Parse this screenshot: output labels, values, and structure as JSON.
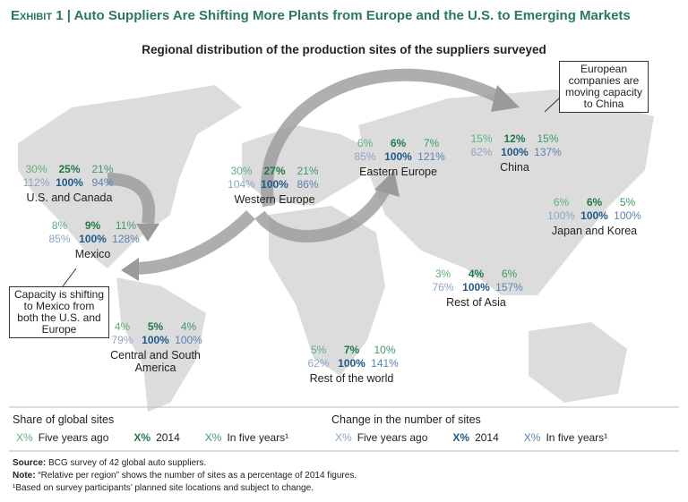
{
  "header": {
    "exhibit": "Exhibit 1",
    "title": "Auto Suppliers Are Shifting More Plants from Europe and the U.S. to Emerging Markets",
    "subtitle": "Regional distribution of the production sites of the suppliers surveyed"
  },
  "regions": [
    {
      "name": "U.S. and Canada",
      "share": [
        "30%",
        "25%",
        "21%"
      ],
      "change": [
        "112%",
        "100%",
        "94%"
      ]
    },
    {
      "name": "Western Europe",
      "share": [
        "30%",
        "27%",
        "21%"
      ],
      "change": [
        "104%",
        "100%",
        "86%"
      ]
    },
    {
      "name": "Eastern Europe",
      "share": [
        "6%",
        "6%",
        "7%"
      ],
      "change": [
        "85%",
        "100%",
        "121%"
      ]
    },
    {
      "name": "China",
      "share": [
        "15%",
        "12%",
        "15%"
      ],
      "change": [
        "62%",
        "100%",
        "137%"
      ]
    },
    {
      "name": "Japan and Korea",
      "share": [
        "6%",
        "6%",
        "5%"
      ],
      "change": [
        "100%",
        "100%",
        "100%"
      ]
    },
    {
      "name": "Mexico",
      "share": [
        "8%",
        "9%",
        "11%"
      ],
      "change": [
        "85%",
        "100%",
        "128%"
      ]
    },
    {
      "name": "Rest of Asia",
      "share": [
        "3%",
        "4%",
        "6%"
      ],
      "change": [
        "76%",
        "100%",
        "157%"
      ]
    },
    {
      "name": "Central and South America",
      "share": [
        "4%",
        "5%",
        "4%"
      ],
      "change": [
        "79%",
        "100%",
        "100%"
      ]
    },
    {
      "name": "Rest of the world",
      "share": [
        "5%",
        "7%",
        "10%"
      ],
      "change": [
        "62%",
        "100%",
        "141%"
      ]
    }
  ],
  "callouts": [
    "European companies are moving capacity to China",
    "Capacity is shifting to Mexico from both the U.S. and Europe"
  ],
  "legend": {
    "share": {
      "title": "Share of global sites",
      "items": [
        {
          "mark": "X%",
          "label": "Five years ago"
        },
        {
          "mark": "X%",
          "label": "2014"
        },
        {
          "mark": "X%",
          "label": "In five years¹"
        }
      ]
    },
    "change": {
      "title": "Change in the number of sites",
      "items": [
        {
          "mark": "X%",
          "label": "Five years ago"
        },
        {
          "mark": "X%",
          "label": "2014"
        },
        {
          "mark": "X%",
          "label": "In five years¹"
        }
      ]
    }
  },
  "footnotes": {
    "source_label": "Source:",
    "source": "BCG survey of 42 global auto suppliers.",
    "note_label": "Note:",
    "note": "“Relative per region” shows the number of sites as a percentage of 2014 figures.",
    "footnote": "¹Based on survey participants’ planned site locations and subject to change."
  }
}
